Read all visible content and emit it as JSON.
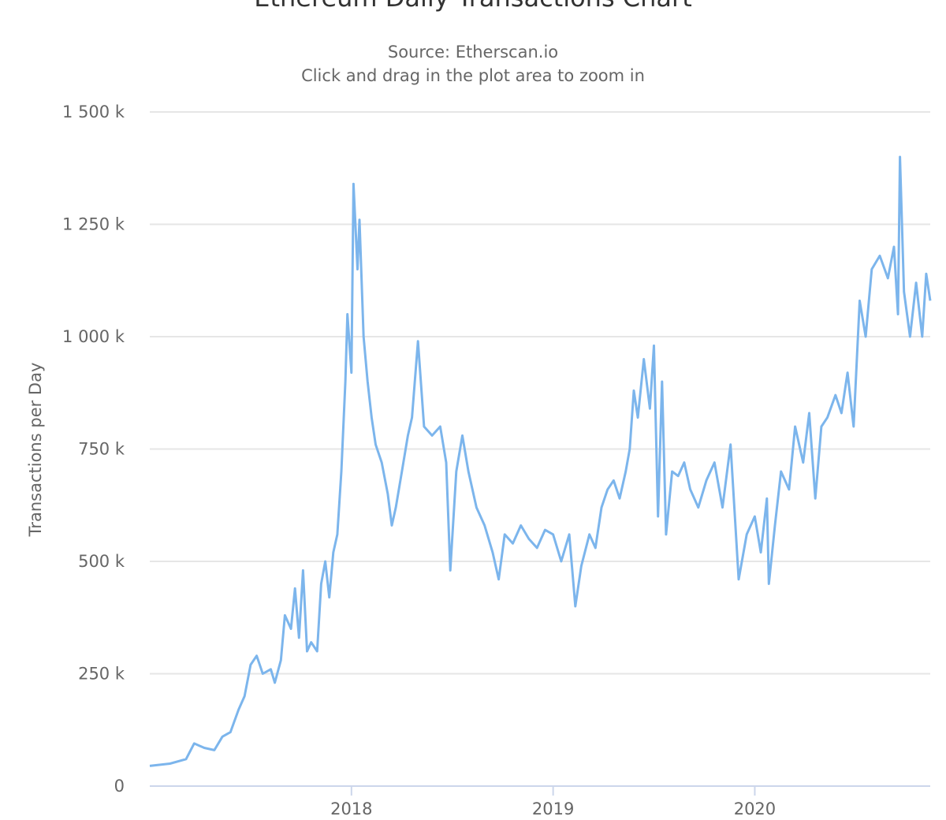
{
  "chart_data": {
    "type": "line",
    "title": "Ethereum Daily Transactions Chart",
    "subtitle": [
      "Source: Etherscan.io",
      "Click and drag in the plot area to zoom in"
    ],
    "y_axis_label": "Transactions per Day",
    "xlim": [
      2017.0,
      2020.87
    ],
    "xticks": [
      2018,
      2019,
      2020
    ],
    "ylim": [
      0,
      1500000
    ],
    "yticks": [
      {
        "value": 0,
        "label": "0"
      },
      {
        "value": 250000,
        "label": "250 k"
      },
      {
        "value": 500000,
        "label": "500 k"
      },
      {
        "value": 750000,
        "label": "750 k"
      },
      {
        "value": 1000000,
        "label": "1 000 k"
      },
      {
        "value": 1250000,
        "label": "1 250 k"
      },
      {
        "value": 1500000,
        "label": "1 500 k"
      }
    ],
    "grid": true,
    "x": [
      2017.0,
      2017.1,
      2017.18,
      2017.22,
      2017.27,
      2017.32,
      2017.36,
      2017.4,
      2017.44,
      2017.47,
      2017.5,
      2017.53,
      2017.56,
      2017.6,
      2017.62,
      2017.65,
      2017.67,
      2017.7,
      2017.72,
      2017.74,
      2017.76,
      2017.78,
      2017.8,
      2017.83,
      2017.85,
      2017.87,
      2017.89,
      2017.91,
      2017.93,
      2017.95,
      2017.97,
      2017.98,
      2018.0,
      2018.01,
      2018.03,
      2018.04,
      2018.06,
      2018.08,
      2018.1,
      2018.12,
      2018.15,
      2018.18,
      2018.2,
      2018.22,
      2018.25,
      2018.28,
      2018.3,
      2018.33,
      2018.36,
      2018.4,
      2018.44,
      2018.47,
      2018.49,
      2018.52,
      2018.55,
      2018.58,
      2018.62,
      2018.66,
      2018.7,
      2018.73,
      2018.76,
      2018.8,
      2018.84,
      2018.88,
      2018.92,
      2018.96,
      2019.0,
      2019.04,
      2019.08,
      2019.11,
      2019.14,
      2019.18,
      2019.21,
      2019.24,
      2019.27,
      2019.3,
      2019.33,
      2019.36,
      2019.38,
      2019.4,
      2019.42,
      2019.45,
      2019.48,
      2019.5,
      2019.52,
      2019.54,
      2019.56,
      2019.59,
      2019.62,
      2019.65,
      2019.68,
      2019.72,
      2019.76,
      2019.8,
      2019.84,
      2019.88,
      2019.92,
      2019.96,
      2020.0,
      2020.03,
      2020.06,
      2020.07,
      2020.1,
      2020.13,
      2020.17,
      2020.2,
      2020.24,
      2020.27,
      2020.3,
      2020.33,
      2020.36,
      2020.4,
      2020.43,
      2020.46,
      2020.49,
      2020.52,
      2020.55,
      2020.58,
      2020.62,
      2020.66,
      2020.69,
      2020.71,
      2020.72,
      2020.74,
      2020.77,
      2020.8,
      2020.83,
      2020.85,
      2020.87
    ],
    "series": [
      {
        "name": "Transactions per Day",
        "color": "#7cb5ec",
        "values": [
          45000,
          50000,
          60000,
          95000,
          85000,
          80000,
          110000,
          120000,
          170000,
          200000,
          270000,
          290000,
          250000,
          260000,
          230000,
          280000,
          380000,
          350000,
          440000,
          330000,
          480000,
          300000,
          320000,
          300000,
          450000,
          500000,
          420000,
          520000,
          560000,
          700000,
          900000,
          1050000,
          920000,
          1340000,
          1150000,
          1260000,
          1000000,
          900000,
          820000,
          760000,
          720000,
          650000,
          580000,
          620000,
          700000,
          780000,
          820000,
          990000,
          800000,
          780000,
          800000,
          720000,
          480000,
          700000,
          780000,
          700000,
          620000,
          580000,
          520000,
          460000,
          560000,
          540000,
          580000,
          550000,
          530000,
          570000,
          560000,
          500000,
          560000,
          400000,
          490000,
          560000,
          530000,
          620000,
          660000,
          680000,
          640000,
          700000,
          750000,
          880000,
          820000,
          950000,
          840000,
          980000,
          600000,
          900000,
          560000,
          700000,
          690000,
          720000,
          660000,
          620000,
          680000,
          720000,
          620000,
          760000,
          460000,
          560000,
          600000,
          520000,
          640000,
          450000,
          580000,
          700000,
          660000,
          800000,
          720000,
          830000,
          640000,
          800000,
          820000,
          870000,
          830000,
          920000,
          800000,
          1080000,
          1000000,
          1150000,
          1180000,
          1130000,
          1200000,
          1050000,
          1400000,
          1100000,
          1000000,
          1120000,
          1000000,
          1140000,
          1080000
        ]
      }
    ]
  }
}
